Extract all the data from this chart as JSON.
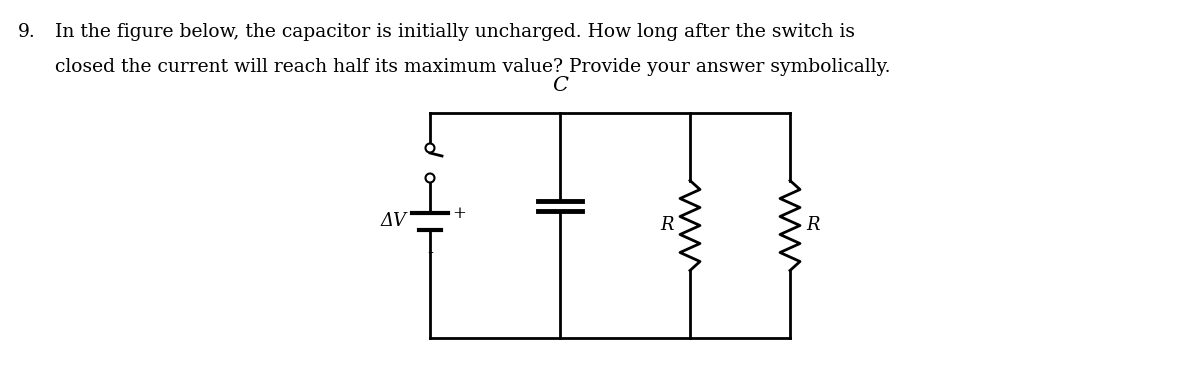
{
  "question_number": "9.",
  "question_text_line1": "In the figure below, the capacitor is initially uncharged. How long after the switch is",
  "question_text_line2": "closed the current will reach half its maximum value? Provide your answer symbolically.",
  "background_color": "#ffffff",
  "text_color": "#000000",
  "font_size_text": 13.5,
  "circuit": {
    "AV_label": "ΔV",
    "C_label": "C",
    "R_label": "R"
  }
}
